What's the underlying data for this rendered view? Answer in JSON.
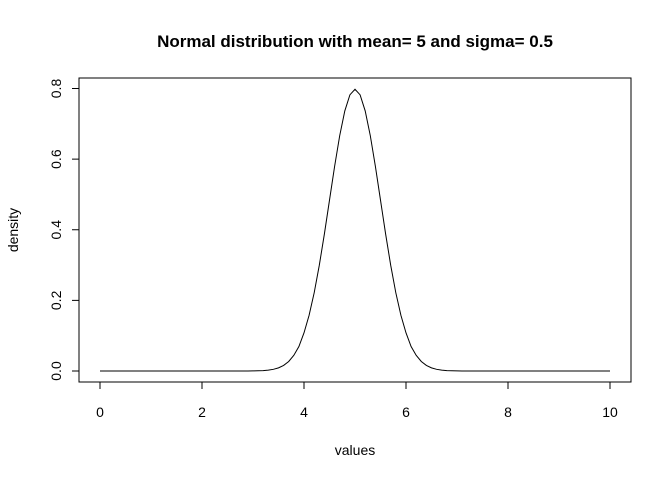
{
  "chart_data": {
    "type": "line",
    "title": "Normal distribution with mean= 5 and sigma= 0.5",
    "xlabel": "values",
    "ylabel": "density",
    "mean": 5,
    "sigma": 0.5,
    "xlim": [
      0,
      10
    ],
    "ylim": [
      0,
      0.8
    ],
    "xticks": [
      "0",
      "2",
      "4",
      "6",
      "8",
      "10"
    ],
    "yticks": [
      "0.0",
      "0.2",
      "0.4",
      "0.6",
      "0.8"
    ],
    "grid": false,
    "legend": "none",
    "line_color": "#000000",
    "x": [
      0,
      0.1,
      0.2,
      0.3,
      0.4,
      0.5,
      0.6,
      0.7,
      0.8,
      0.9,
      1,
      1.1,
      1.2,
      1.3,
      1.4,
      1.5,
      1.6,
      1.7,
      1.8,
      1.9,
      2,
      2.1,
      2.2,
      2.3,
      2.4,
      2.5,
      2.6,
      2.7,
      2.8,
      2.9,
      3,
      3.1,
      3.2,
      3.3,
      3.4,
      3.5,
      3.6,
      3.7,
      3.8,
      3.9,
      4,
      4.1,
      4.2,
      4.3,
      4.4,
      4.5,
      4.6,
      4.7,
      4.8,
      4.9,
      5,
      5.1,
      5.2,
      5.3,
      5.4,
      5.5,
      5.6,
      5.7,
      5.8,
      5.9,
      6,
      6.1,
      6.2,
      6.3,
      6.4,
      6.5,
      6.6,
      6.7,
      6.8,
      6.9,
      7,
      7.1,
      7.2,
      7.3,
      7.4,
      7.5,
      7.6,
      7.7,
      7.8,
      7.9,
      8,
      8.1,
      8.2,
      8.3,
      8.4,
      8.5,
      8.6,
      8.7,
      8.8,
      8.9,
      9,
      9.1,
      9.2,
      9.3,
      9.4,
      9.5,
      9.6,
      9.7,
      9.8,
      9.9,
      10
    ],
    "y": [
      0,
      0,
      0,
      0,
      0,
      0,
      0,
      0,
      0,
      0,
      0,
      0,
      0,
      0,
      0,
      0,
      0,
      0,
      0,
      0,
      0,
      0,
      0,
      0,
      0,
      0,
      0,
      0,
      0,
      0.0001,
      0.0003,
      0.0006,
      0.0012,
      0.0025,
      0.0048,
      0.0089,
      0.0158,
      0.027,
      0.0443,
      0.0694,
      0.108,
      0.1579,
      0.2218,
      0.2995,
      0.3883,
      0.4839,
      0.5794,
      0.6664,
      0.7365,
      0.7821,
      0.7979,
      0.7821,
      0.7365,
      0.6664,
      0.5794,
      0.4839,
      0.3883,
      0.2995,
      0.2218,
      0.1579,
      0.108,
      0.0694,
      0.0443,
      0.027,
      0.0158,
      0.0089,
      0.0048,
      0.0025,
      0.0012,
      0.0006,
      0.0003,
      0.0001,
      0,
      0,
      0,
      0,
      0,
      0,
      0,
      0,
      0,
      0,
      0,
      0,
      0,
      0,
      0,
      0,
      0,
      0,
      0,
      0,
      0,
      0,
      0,
      0,
      0,
      0,
      0,
      0,
      0
    ]
  }
}
